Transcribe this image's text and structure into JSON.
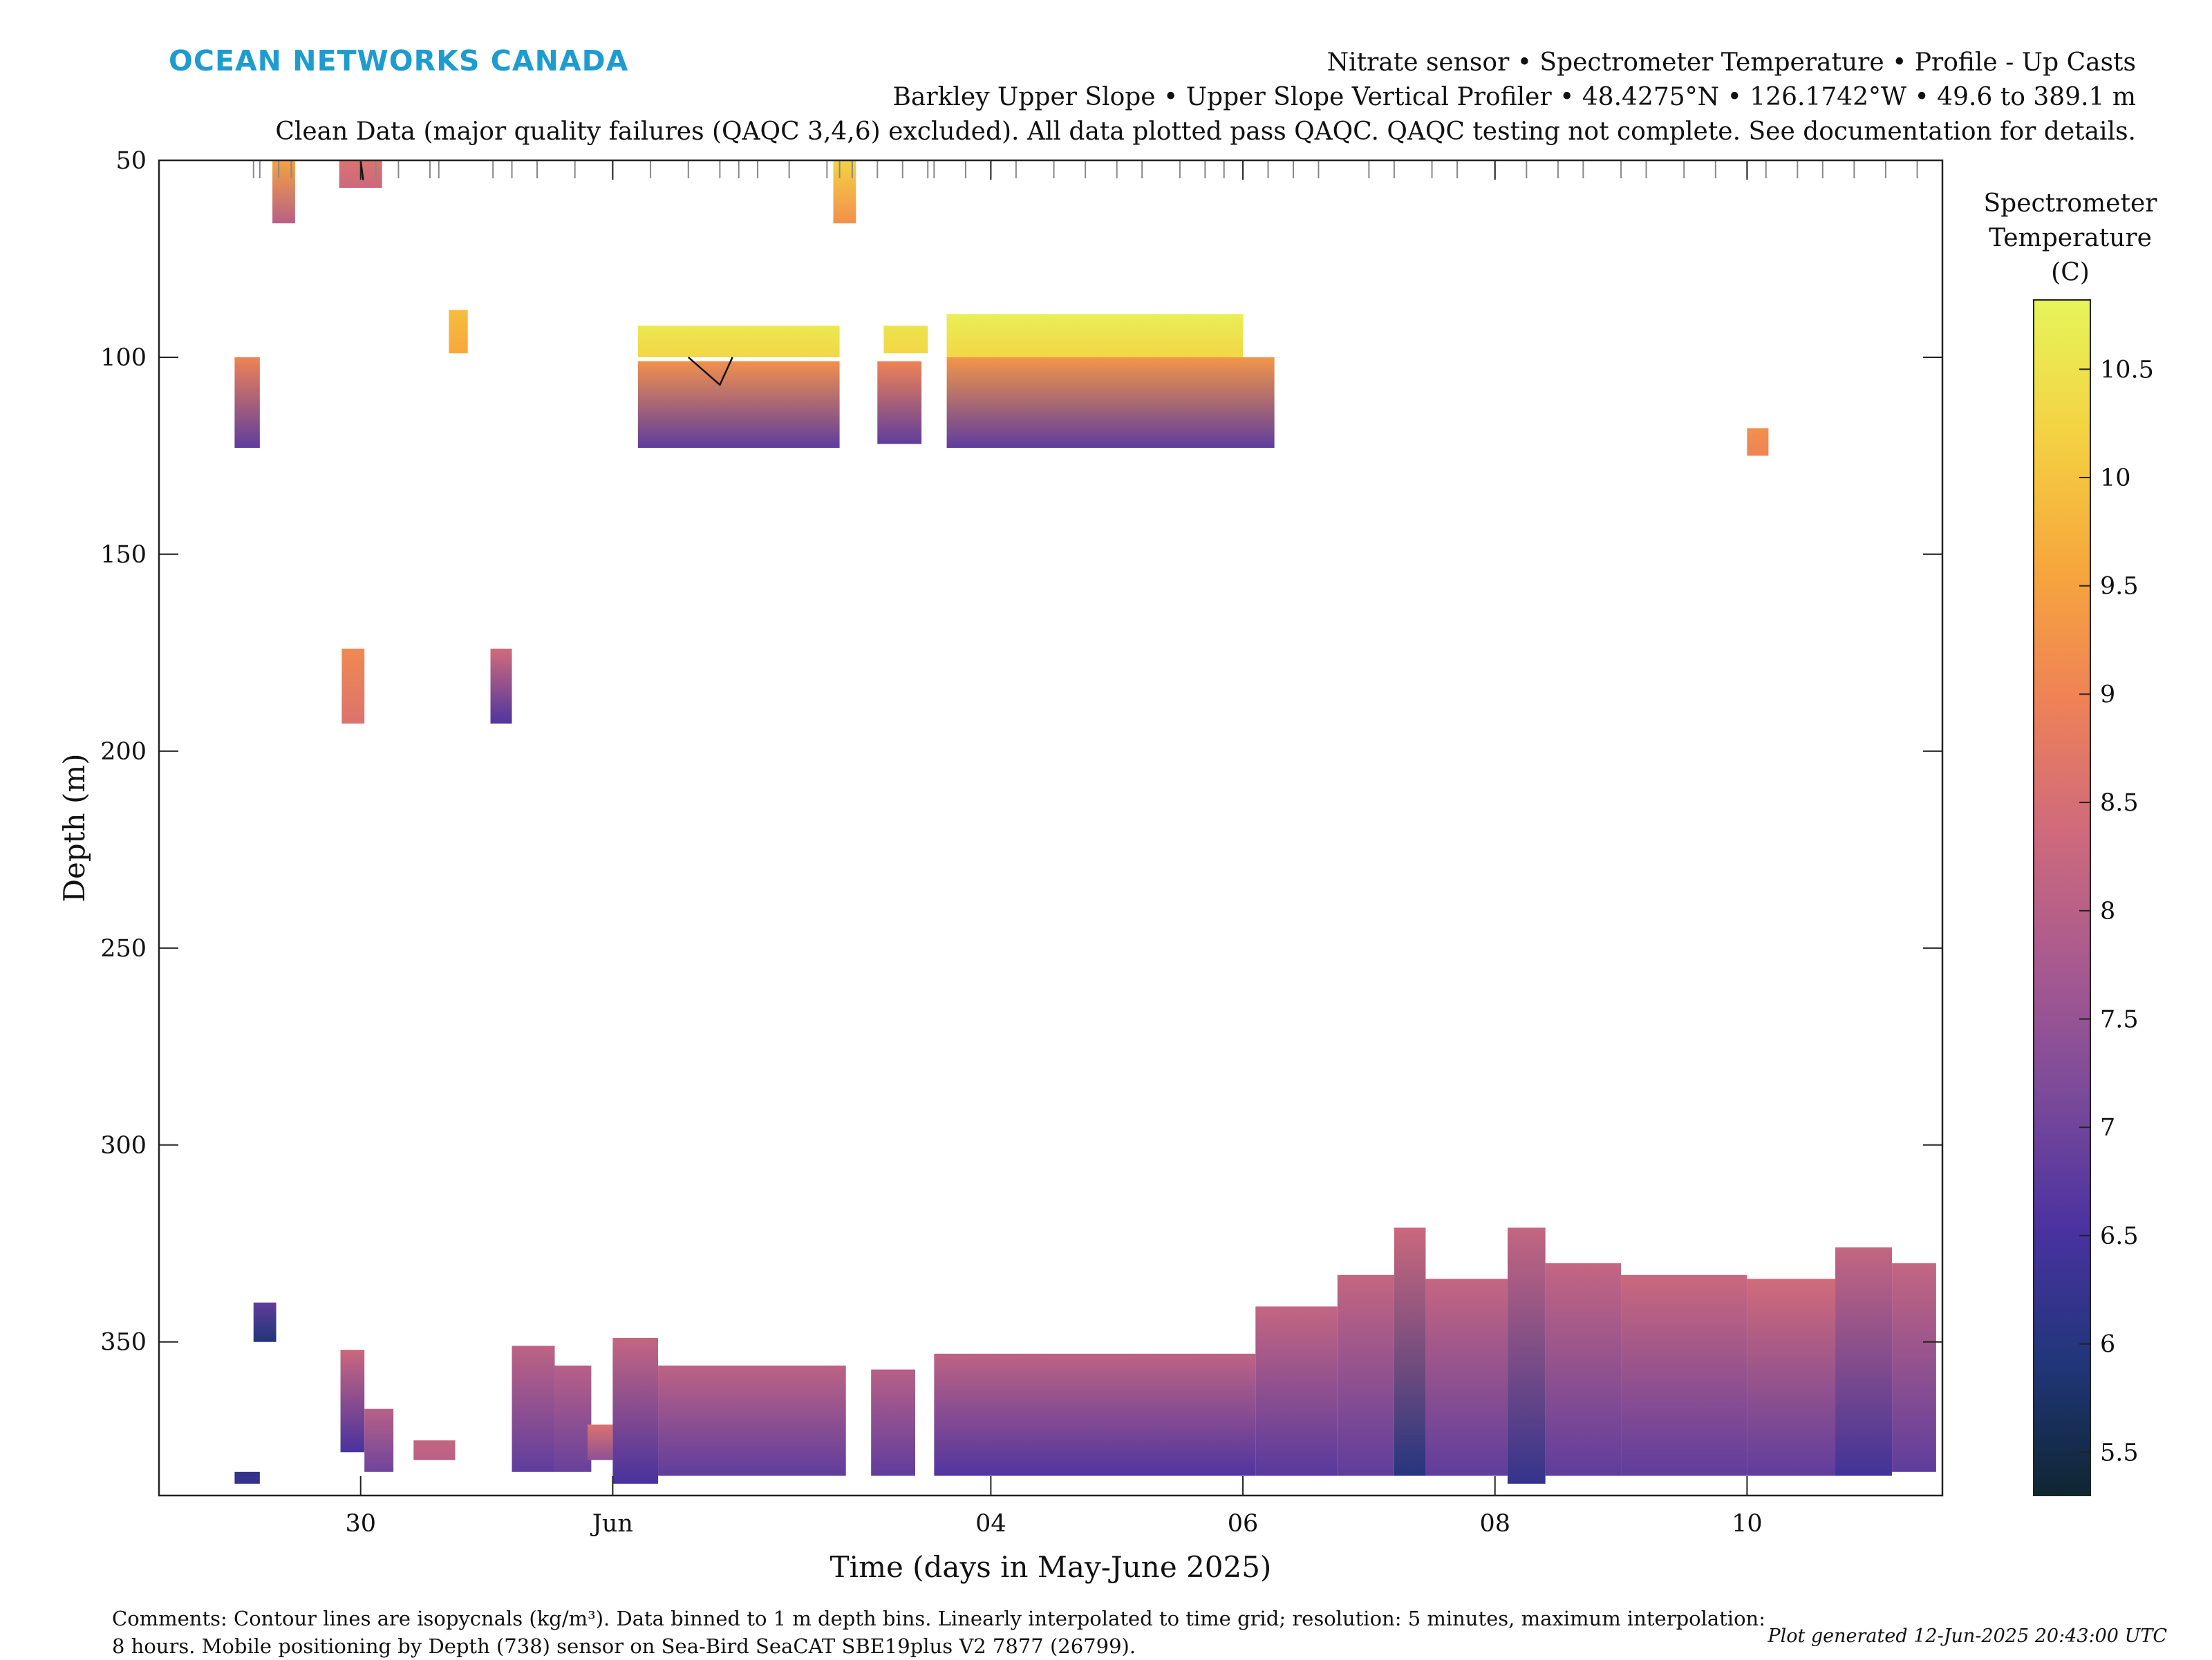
{
  "logo": "OCEAN NETWORKS CANADA",
  "header": {
    "line1": "Nitrate sensor • Spectrometer Temperature • Profile - Up Casts",
    "line2": "Barkley Upper Slope • Upper Slope Vertical Profiler • 48.4275°N • 126.1742°W • 49.6 to 389.1 m",
    "line3": "Clean Data (major quality failures (QAQC 3,4,6) excluded). All data plotted pass QAQC. QAQC testing not complete. See documentation for details."
  },
  "colorbar": {
    "title_lines": [
      "Spectrometer",
      "Temperature",
      "(C)"
    ],
    "ticks": [
      "5.5",
      "6",
      "6.5",
      "7",
      "7.5",
      "8",
      "8.5",
      "9",
      "9.5",
      "10",
      "10.5"
    ],
    "range": [
      5.3,
      10.82
    ],
    "colormap": [
      "#0f2632",
      "#20367a",
      "#4a32a0",
      "#7a4a9a",
      "#a85a8f",
      "#cf6a7c",
      "#ef8256",
      "#f6a83c",
      "#f4d242",
      "#e6f55a"
    ]
  },
  "comments": {
    "line1": "Comments: Contour lines are isopycnals (kg/m³). Data binned to 1 m depth bins. Linearly interpolated to time grid; resolution: 5 minutes, maximum interpolation:",
    "line2": "8 hours. Mobile positioning by Depth (738) sensor on Sea-Bird SeaCAT SBE19plus V2 7877 (26799)."
  },
  "plot_generated": "Plot generated 12-Jun-2025 20:43:00 UTC",
  "chart_data": {
    "type": "heatmap",
    "xlabel": "Time (days in May-June 2025)",
    "ylabel": "Depth (m)",
    "x_unit": "days since 30-May-2025 00:00",
    "x_range": [
      -1.6,
      12.55
    ],
    "y_range": [
      50,
      389
    ],
    "y_reversed": true,
    "x_ticks": [
      {
        "t": 0,
        "label": "30"
      },
      {
        "t": 2,
        "label": "Jun"
      },
      {
        "t": 5,
        "label": "04"
      },
      {
        "t": 7,
        "label": "06"
      },
      {
        "t": 9,
        "label": "08"
      },
      {
        "t": 11,
        "label": "10"
      }
    ],
    "y_ticks": [
      50,
      100,
      150,
      200,
      250,
      300,
      350
    ],
    "cast_times": [
      -0.85,
      -0.8,
      -0.65,
      -0.55,
      0.0,
      0.12,
      0.3,
      0.55,
      0.62,
      1.05,
      1.2,
      1.4,
      1.7,
      2.0,
      2.3,
      2.6,
      2.85,
      3.0,
      3.15,
      3.4,
      3.7,
      3.8,
      3.9,
      4.1,
      4.3,
      4.5,
      4.55,
      4.8,
      5.0,
      5.2,
      5.5,
      5.75,
      6.0,
      6.2,
      6.5,
      6.7,
      6.85,
      7.2,
      7.4,
      7.6,
      8.0,
      8.2,
      8.5,
      8.7,
      9.0,
      9.25,
      9.5,
      9.7,
      10.0,
      10.2,
      10.5,
      10.75,
      11.0,
      11.15,
      11.4,
      11.6,
      11.85,
      12.1,
      12.35
    ],
    "segments": [
      {
        "t0": -0.7,
        "t1": -0.52,
        "top": 50,
        "bottom": 66,
        "c_top": 9.5,
        "c_bottom": 8.0
      },
      {
        "t0": -1.0,
        "t1": -0.8,
        "top": 100,
        "bottom": 123,
        "c_top": 9.0,
        "c_bottom": 6.8
      },
      {
        "t0": -0.17,
        "t1": 0.17,
        "top": 50,
        "bottom": 57,
        "c_top": 8.6,
        "c_bottom": 8.3
      },
      {
        "t0": 0.7,
        "t1": 0.85,
        "top": 88,
        "bottom": 99,
        "c_top": 9.9,
        "c_bottom": 9.6
      },
      {
        "t0": -0.15,
        "t1": 0.03,
        "top": 174,
        "bottom": 193,
        "c_top": 9.1,
        "c_bottom": 8.6
      },
      {
        "t0": 1.03,
        "t1": 1.2,
        "top": 174,
        "bottom": 193,
        "c_top": 8.4,
        "c_bottom": 6.6
      },
      {
        "t0": 3.75,
        "t1": 3.93,
        "top": 50,
        "bottom": 66,
        "c_top": 10.2,
        "c_bottom": 9.2
      },
      {
        "t0": 2.2,
        "t1": 3.8,
        "top": 92,
        "bottom": 100,
        "c_top": 10.6,
        "c_bottom": 10.3
      },
      {
        "t0": 2.2,
        "t1": 3.8,
        "top": 101,
        "bottom": 123,
        "c_top": 9.2,
        "c_bottom": 6.8
      },
      {
        "t0": 4.15,
        "t1": 4.5,
        "top": 92,
        "bottom": 99,
        "c_top": 10.5,
        "c_bottom": 10.3
      },
      {
        "t0": 4.1,
        "t1": 4.45,
        "top": 101,
        "bottom": 122,
        "c_top": 9.0,
        "c_bottom": 6.8
      },
      {
        "t0": 4.65,
        "t1": 7.0,
        "top": 89,
        "bottom": 100,
        "c_top": 10.7,
        "c_bottom": 10.3
      },
      {
        "t0": 4.65,
        "t1": 7.25,
        "top": 100,
        "bottom": 123,
        "c_top": 9.3,
        "c_bottom": 6.8
      },
      {
        "t0": 11.0,
        "t1": 11.17,
        "top": 118,
        "bottom": 125,
        "c_top": 9.2,
        "c_bottom": 9.0
      },
      {
        "t0": -0.85,
        "t1": -0.67,
        "top": 340,
        "bottom": 350,
        "c_top": 6.8,
        "c_bottom": 5.9
      },
      {
        "t0": -0.16,
        "t1": 0.03,
        "top": 352,
        "bottom": 378,
        "c_top": 8.3,
        "c_bottom": 6.5
      },
      {
        "t0": 0.03,
        "t1": 0.26,
        "top": 367,
        "bottom": 383,
        "c_top": 8.0,
        "c_bottom": 7.0
      },
      {
        "t0": 0.42,
        "t1": 0.75,
        "top": 375,
        "bottom": 380,
        "c_top": 8.2,
        "c_bottom": 8.0
      },
      {
        "t0": 1.2,
        "t1": 1.54,
        "top": 351,
        "bottom": 383,
        "c_top": 8.1,
        "c_bottom": 6.8
      },
      {
        "t0": 1.54,
        "t1": 1.83,
        "top": 356,
        "bottom": 383,
        "c_top": 8.0,
        "c_bottom": 6.9
      },
      {
        "t0": 1.8,
        "t1": 2.0,
        "top": 371,
        "bottom": 380,
        "c_top": 8.6,
        "c_bottom": 7.4
      },
      {
        "t0": -1.0,
        "t1": -0.8,
        "top": 383,
        "bottom": 386,
        "c_top": 6.2,
        "c_bottom": 6.2
      },
      {
        "t0": 2.0,
        "t1": 2.36,
        "top": 349,
        "bottom": 386,
        "c_top": 8.2,
        "c_bottom": 6.5
      },
      {
        "t0": 2.36,
        "t1": 3.85,
        "top": 356,
        "bottom": 384,
        "c_top": 8.1,
        "c_bottom": 6.8
      },
      {
        "t0": 4.05,
        "t1": 4.4,
        "top": 357,
        "bottom": 384,
        "c_top": 8.0,
        "c_bottom": 6.8
      },
      {
        "t0": 4.55,
        "t1": 7.1,
        "top": 353,
        "bottom": 384,
        "c_top": 8.1,
        "c_bottom": 6.6
      },
      {
        "t0": 7.1,
        "t1": 7.75,
        "top": 341,
        "bottom": 384,
        "c_top": 8.2,
        "c_bottom": 6.7
      },
      {
        "t0": 7.75,
        "t1": 8.2,
        "top": 333,
        "bottom": 384,
        "c_top": 8.2,
        "c_bottom": 6.8
      },
      {
        "t0": 8.2,
        "t1": 8.45,
        "top": 321,
        "bottom": 384,
        "c_top": 8.3,
        "c_bottom": 6.0
      },
      {
        "t0": 8.45,
        "t1": 9.1,
        "top": 334,
        "bottom": 384,
        "c_top": 8.2,
        "c_bottom": 6.8
      },
      {
        "t0": 9.1,
        "t1": 9.4,
        "top": 321,
        "bottom": 386,
        "c_top": 8.2,
        "c_bottom": 6.2
      },
      {
        "t0": 9.4,
        "t1": 10.0,
        "top": 330,
        "bottom": 384,
        "c_top": 8.2,
        "c_bottom": 6.8
      },
      {
        "t0": 10.0,
        "t1": 11.0,
        "top": 333,
        "bottom": 384,
        "c_top": 8.3,
        "c_bottom": 6.8
      },
      {
        "t0": 11.0,
        "t1": 11.7,
        "top": 334,
        "bottom": 384,
        "c_top": 8.4,
        "c_bottom": 6.8
      },
      {
        "t0": 11.7,
        "t1": 12.15,
        "top": 326,
        "bottom": 384,
        "c_top": 8.2,
        "c_bottom": 6.4
      },
      {
        "t0": 12.15,
        "t1": 12.5,
        "top": 330,
        "bottom": 383,
        "c_top": 8.2,
        "c_bottom": 6.8
      }
    ],
    "contour_lines": [
      {
        "points": [
          [
            2.6,
            100
          ],
          [
            2.85,
            107
          ],
          [
            2.95,
            100
          ]
        ]
      },
      {
        "points": [
          [
            0.0,
            50
          ],
          [
            0.02,
            55
          ]
        ]
      }
    ]
  }
}
